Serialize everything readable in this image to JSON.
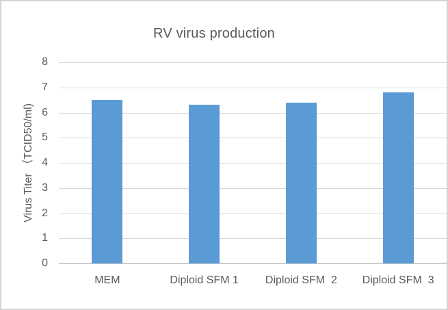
{
  "chart_data": {
    "type": "bar",
    "title": "RV virus production",
    "categories": [
      "MEM",
      "Diploid SFM 1",
      "Diploid SFM  2",
      "Diploid SFM  3"
    ],
    "values": [
      6.5,
      6.3,
      6.4,
      6.8
    ],
    "xlabel": "",
    "ylabel": "Virus Titer （TCID50/ml)",
    "ylim": [
      0,
      8
    ],
    "yticks": [
      0,
      1,
      2,
      3,
      4,
      5,
      6,
      7,
      8
    ],
    "grid": true,
    "legend": false,
    "colors": {
      "bar_fill": "#5B9BD5",
      "gridline": "#D9D9D9",
      "axis_line": "#CDCDCD",
      "text": "#595959",
      "frame_border": "#D4D4D4",
      "background": "#FFFFFF"
    }
  }
}
